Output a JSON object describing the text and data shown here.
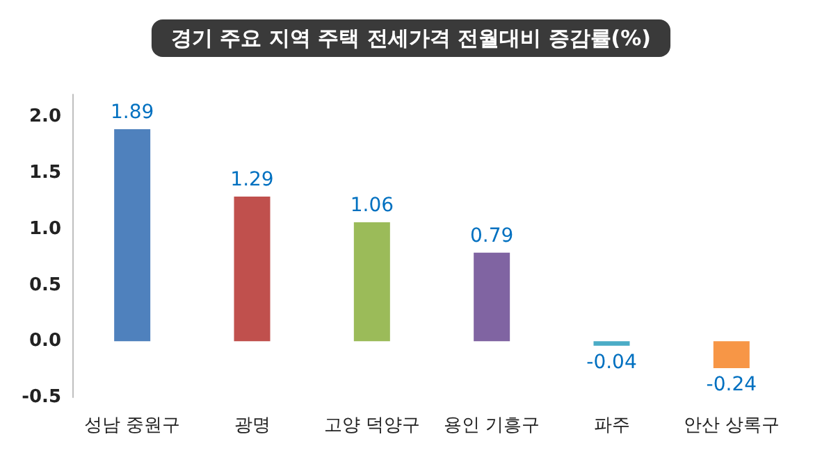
{
  "chart_data": {
    "type": "bar",
    "title": "경기 주요 지역 주택 전세가격 전월대비 증감률(%)",
    "categories": [
      "성남 중원구",
      "광명",
      "고양 덕양구",
      "용인 기흥구",
      "파주",
      "안산 상록구"
    ],
    "values": [
      1.89,
      1.29,
      1.06,
      0.79,
      -0.04,
      -0.24
    ],
    "colors": [
      "#4f81bd",
      "#c0504d",
      "#9bbb59",
      "#8064a2",
      "#4bacc6",
      "#f79646"
    ],
    "ylim": [
      -0.5,
      2.2
    ],
    "yticks": [
      {
        "value": -0.5,
        "label": "-0.5"
      },
      {
        "value": 0,
        "label": "0.0"
      },
      {
        "value": 0.5,
        "label": "0.5"
      },
      {
        "value": 1,
        "label": "1.0"
      },
      {
        "value": 1.5,
        "label": "1.5"
      },
      {
        "value": 2,
        "label": "2.0"
      }
    ],
    "data_labels": true,
    "grid": false
  }
}
